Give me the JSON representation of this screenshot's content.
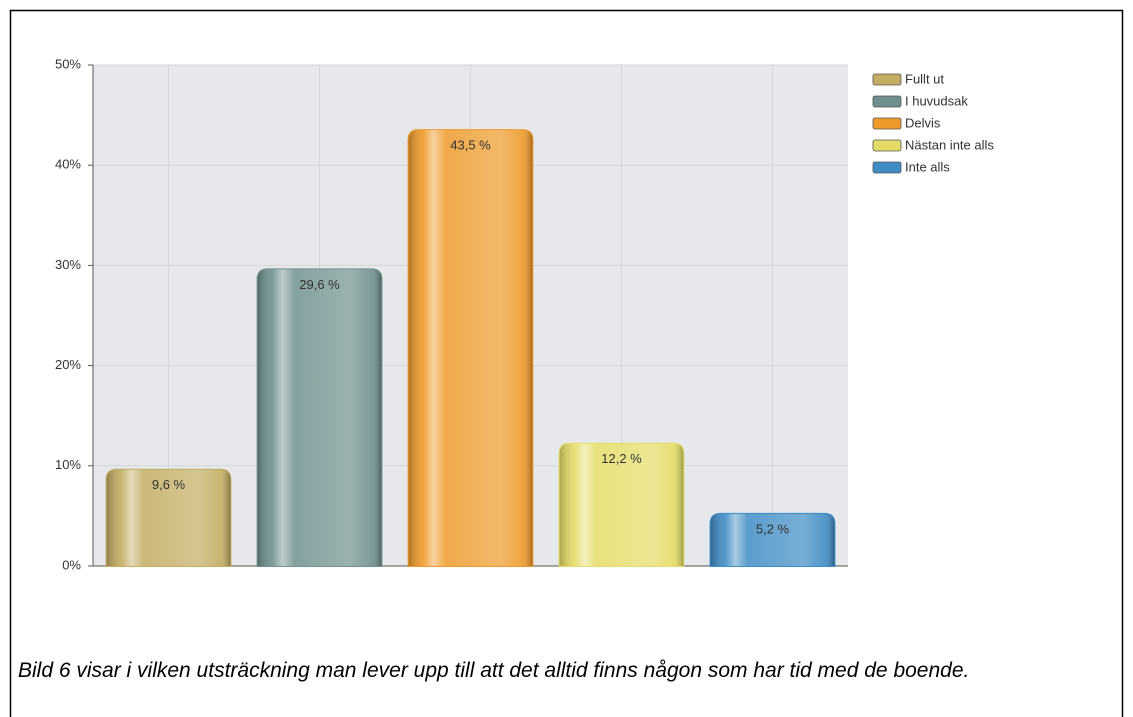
{
  "chart_data": {
    "type": "bar",
    "series": [
      {
        "name": "Fullt ut",
        "color": "#c2ad62",
        "values": [
          9.6
        ],
        "value_labels": [
          "9,6 %"
        ]
      },
      {
        "name": "I huvudsak",
        "color": "#6f908e",
        "values": [
          29.6
        ],
        "value_labels": [
          "29,6 %"
        ]
      },
      {
        "name": "Delvis",
        "color": "#ee9a2a",
        "values": [
          43.5
        ],
        "value_labels": [
          "43,5 %"
        ]
      },
      {
        "name": "Nästan inte alls",
        "color": "#e4dc66",
        "values": [
          12.2
        ],
        "value_labels": [
          "12,2 %"
        ]
      },
      {
        "name": "Inte alls",
        "color": "#3f8cc4",
        "values": [
          5.2
        ],
        "value_labels": [
          "5,2 %"
        ]
      }
    ],
    "ylim": [
      0,
      50
    ],
    "yticks": [
      {
        "value": 0,
        "label": "0%"
      },
      {
        "value": 10,
        "label": "10%"
      },
      {
        "value": 20,
        "label": "20%"
      },
      {
        "value": 30,
        "label": "30%"
      },
      {
        "value": 40,
        "label": "40%"
      },
      {
        "value": 50,
        "label": "50%"
      }
    ],
    "grid": true,
    "legend": "right",
    "caption": "Bild 6 visar i vilken utsträckning man lever upp till att det alltid finns någon som har tid med de boende."
  }
}
